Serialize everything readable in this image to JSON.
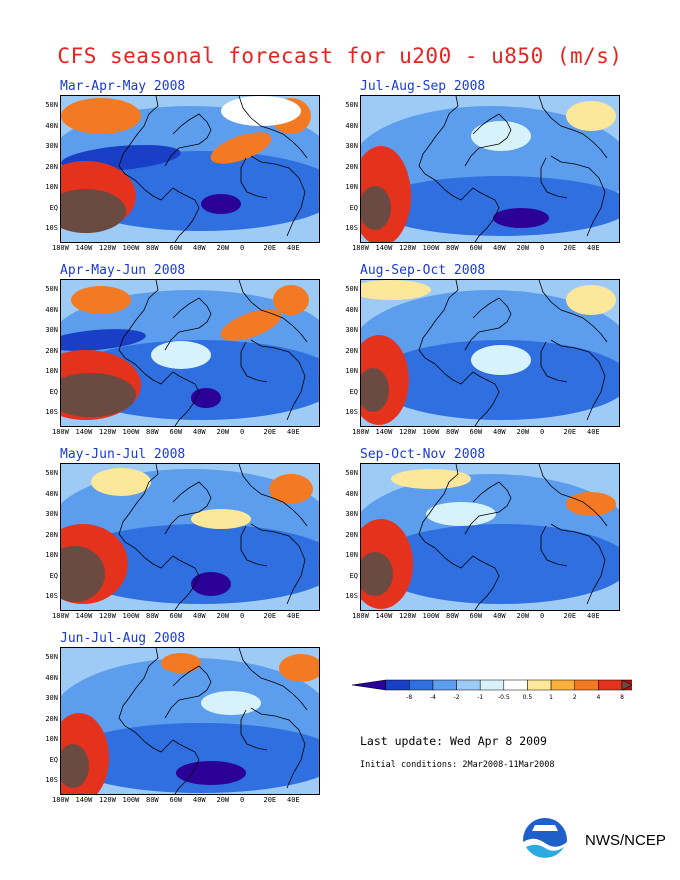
{
  "title": "CFS seasonal forecast for u200 - u850 (m/s)",
  "panels": [
    {
      "label": "Mar-Apr-May 2008"
    },
    {
      "label": "Jul-Aug-Sep 2008"
    },
    {
      "label": "Apr-May-Jun 2008"
    },
    {
      "label": "Aug-Sep-Oct 2008"
    },
    {
      "label": "May-Jun-Jul 2008"
    },
    {
      "label": "Sep-Oct-Nov 2008"
    },
    {
      "label": "Jun-Jul-Aug 2008"
    }
  ],
  "lat_labels": [
    "50N",
    "40N",
    "30N",
    "20N",
    "10N",
    "EQ",
    "10S"
  ],
  "lon_labels": [
    "180W",
    "140W",
    "120W",
    "100W",
    "80W",
    "60W",
    "40W",
    "20W",
    "0",
    "20E",
    "40E"
  ],
  "colorbar": {
    "labels": [
      "-8",
      "-4",
      "-2",
      "-1",
      "-0.5",
      "0.5",
      "1",
      "2",
      "4",
      "8"
    ],
    "colors": [
      "#2a0099",
      "#1a3fc7",
      "#2f6fe0",
      "#5c9ded",
      "#9ecbf5",
      "#d8f2fb",
      "#ffffff",
      "#fde79a",
      "#f9b03c",
      "#f37a22",
      "#e5321d",
      "#b30d0d",
      "#6b4a42"
    ]
  },
  "last_update": "Last update: Wed Apr 8 2009",
  "initial_conditions": "Initial conditions: 2Mar2008-11Mar2008",
  "credit": "NWS/NCEP",
  "logo": "noaa-logo"
}
